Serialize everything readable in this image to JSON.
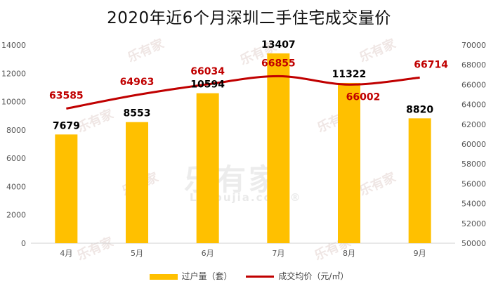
{
  "title": "2020年近6个月深圳二手住宅成交量价",
  "watermark": {
    "brand": "乐有家",
    "site": "Leyoujia.com",
    "mark": "®"
  },
  "legend": {
    "bar_label": "过户量（套）",
    "line_label": "成交均价（元/㎡）"
  },
  "colors": {
    "bar": "#ffc000",
    "line": "#c00000",
    "bar_label": "#000000",
    "line_label": "#c00000"
  },
  "chart_data": {
    "type": "bar",
    "title": "2020年近6个月深圳二手住宅成交量价",
    "categories": [
      "4月",
      "5月",
      "6月",
      "7月",
      "8月",
      "9月"
    ],
    "series": [
      {
        "name": "过户量（套）",
        "type": "bar",
        "axis": "left",
        "values": [
          7679,
          8553,
          10594,
          13407,
          11322,
          8820
        ]
      },
      {
        "name": "成交均价（元/㎡）",
        "type": "line",
        "axis": "right",
        "values": [
          63585,
          64963,
          66034,
          66855,
          66002,
          66714
        ]
      }
    ],
    "ylim_left": [
      0,
      14000
    ],
    "yticks_left": [
      0,
      2000,
      4000,
      6000,
      8000,
      10000,
      12000,
      14000
    ],
    "ylim_right": [
      50000,
      70000
    ],
    "yticks_right": [
      50000,
      52000,
      54000,
      56000,
      58000,
      60000,
      62000,
      64000,
      66000,
      68000,
      70000
    ],
    "grid": false,
    "legend_position": "bottom"
  }
}
